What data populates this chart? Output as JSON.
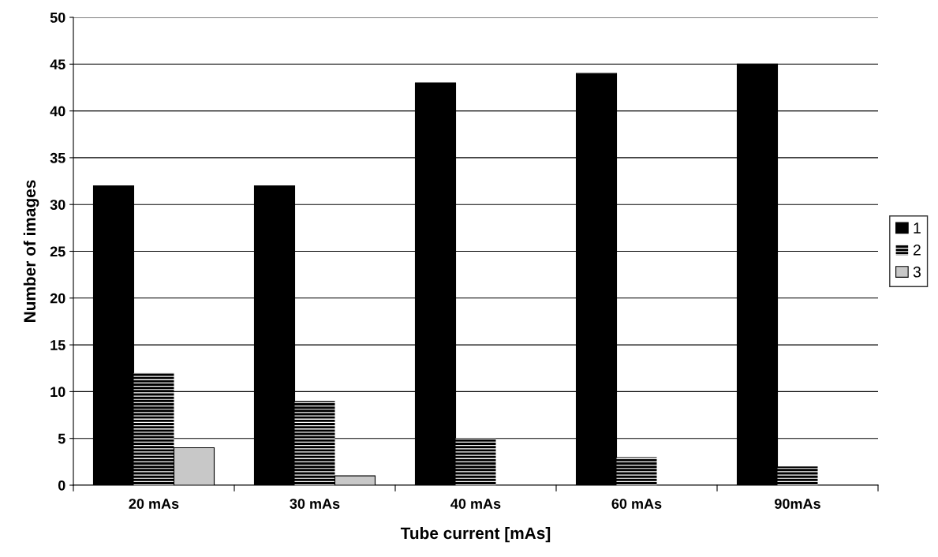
{
  "chart_data": {
    "type": "bar",
    "xlabel": "Tube current [mAs]",
    "ylabel": "Number of images",
    "categories": [
      "20 mAs",
      "30 mAs",
      "40 mAs",
      "60 mAs",
      "90mAs"
    ],
    "series": [
      {
        "name": "1",
        "color": "#000000",
        "values": [
          32,
          32,
          43,
          44,
          45
        ]
      },
      {
        "name": "2",
        "color": "#000000",
        "values": [
          12,
          9,
          5,
          3,
          2
        ]
      },
      {
        "name": "3",
        "color": "#c8c8c8",
        "values": [
          4,
          1,
          null,
          null,
          null
        ]
      }
    ],
    "ylim": [
      0,
      50
    ],
    "yticks": [
      0,
      5,
      10,
      15,
      20,
      25,
      30,
      35,
      40,
      45,
      50
    ],
    "grid": "y",
    "legend": "right"
  }
}
